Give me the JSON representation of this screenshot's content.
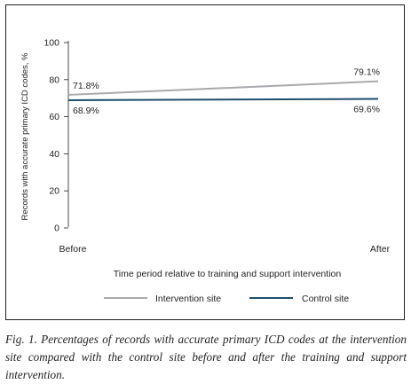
{
  "chart_data": {
    "type": "line",
    "x": [
      "Before",
      "After"
    ],
    "xlabel": "Time period relative to training and support intervention",
    "ylabel": "Records with accurate primary ICD codes, %",
    "ylim": [
      0,
      100
    ],
    "yticks": [
      "0",
      "20",
      "40",
      "60",
      "80",
      "100"
    ],
    "grid": false,
    "legend_placement": "bottom",
    "series": [
      {
        "name": "Intervention site",
        "values": [
          71.8,
          79.1
        ],
        "labels": [
          "71.8%",
          "79.1%"
        ],
        "color": "#a7a9ac"
      },
      {
        "name": "Control site",
        "values": [
          68.9,
          69.6
        ],
        "labels": [
          "68.9%",
          "69.6%"
        ],
        "color": "#1f4e6e"
      }
    ]
  },
  "caption": "Fig. 1. Percentages of records with accurate primary ICD codes at the intervention site compared with the control site before and after the training and support intervention."
}
